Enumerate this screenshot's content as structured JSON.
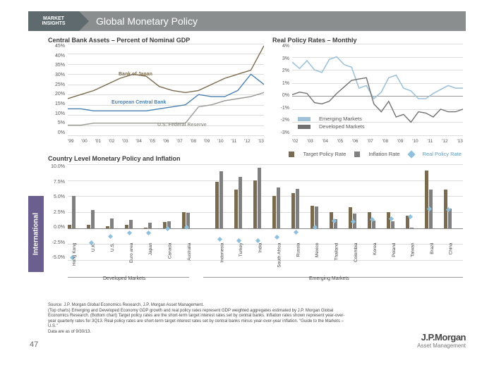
{
  "header": {
    "insights_l1": "MARKET",
    "insights_l2": "INSIGHTS",
    "title": "Global Monetary Policy"
  },
  "sidebar": {
    "label": "International"
  },
  "chart_tl": {
    "type": "line",
    "title": "Central Bank Assets – Percent of Nominal GDP",
    "ylim": [
      0,
      45
    ],
    "ytick_step": 5,
    "xticks": [
      "'99",
      "'00",
      "'01",
      "'02",
      "'03",
      "'04",
      "'05",
      "'06",
      "'07",
      "'08",
      "'09",
      "'10",
      "'11",
      "'12",
      "'13"
    ],
    "series": {
      "boj": {
        "label": "Bank of Japan",
        "color": "#7a6a4f",
        "values": [
          18,
          20,
          22,
          25,
          28,
          30,
          29,
          24,
          22,
          21,
          22,
          25,
          28,
          30,
          32,
          44
        ]
      },
      "ecb": {
        "label": "European Central Bank",
        "color": "#4a7fb0",
        "values": [
          13,
          13,
          12,
          12,
          12,
          12,
          12,
          13,
          14,
          15,
          20,
          19,
          19,
          22,
          30,
          25
        ]
      },
      "fed": {
        "label": "U.S. Federal Reserve",
        "color": "#989793",
        "values": [
          5,
          5,
          6,
          6,
          6,
          6,
          6,
          6,
          6,
          6,
          14,
          15,
          17,
          18,
          19,
          21
        ]
      }
    },
    "background": "#ffffff",
    "grid_color": "#dcdcda",
    "title_fontsize": 9,
    "label_fontsize": 7
  },
  "chart_tr": {
    "type": "line",
    "title": "Real Policy Rates – Monthly",
    "ylim": [
      -3,
      4
    ],
    "yticks": [
      "4%",
      "3%",
      "2%",
      "1%",
      "0%",
      "-1%",
      "-2%",
      "-3%"
    ],
    "xticks": [
      "'02",
      "'03",
      "'04",
      "'05",
      "'06",
      "'07",
      "'08",
      "'09",
      "'10",
      "'11",
      "'12",
      "'13"
    ],
    "series": {
      "em": {
        "label": "Emerging Markets",
        "color": "#9fc2d8",
        "values": [
          2.6,
          2.1,
          2.7,
          2.0,
          1.8,
          2.8,
          3.0,
          2.4,
          2.2,
          0.6,
          0.8,
          -0.2,
          0.3,
          1.4,
          1.6,
          0.6,
          0.4,
          -0.2,
          -0.2,
          0.2,
          0.5,
          0.8,
          0.6,
          0.6
        ]
      },
      "dm": {
        "label": "Developed Markets",
        "color": "#707070",
        "values": [
          0.1,
          0.3,
          0.2,
          -0.5,
          -0.6,
          -0.4,
          0.2,
          0.7,
          1.2,
          1.3,
          1.4,
          -0.6,
          -1.2,
          -0.4,
          -1.6,
          -1.4,
          -2.0,
          -1.2,
          -1.3,
          -1.6,
          -1.0,
          -1.2,
          -1.2,
          -1.0
        ]
      }
    },
    "background": "#ffffff",
    "grid_color": "#dcdcda",
    "title_fontsize": 9,
    "label_fontsize": 7
  },
  "chart_b": {
    "type": "bar",
    "title": "Country Level Monetary Policy and Inflation",
    "ylim": [
      -5,
      10
    ],
    "yticks": [
      "10.0%",
      "7.5%",
      "5.0%",
      "2.5%",
      "0.0%",
      "-2.5%",
      "-5.0%"
    ],
    "legend": {
      "target": "Target Policy Rate",
      "infl": "Inflation Rate",
      "real": "Real Policy Rate"
    },
    "colors": {
      "target": "#7a6a4f",
      "infl": "#808080",
      "real": "#8fc1de"
    },
    "countries": [
      {
        "name": "Hong Kong",
        "target": 0.5,
        "infl": 5.0,
        "real": -4.6
      },
      {
        "name": "U.K.",
        "target": 0.5,
        "infl": 2.8,
        "real": -2.3
      },
      {
        "name": "U.S.",
        "target": 0.3,
        "infl": 1.5,
        "real": -1.3
      },
      {
        "name": "Euro area",
        "target": 0.5,
        "infl": 1.3,
        "real": -0.8
      },
      {
        "name": "Japan",
        "target": 0.1,
        "infl": 0.9,
        "real": -0.8
      },
      {
        "name": "Canada",
        "target": 1.0,
        "infl": 1.1,
        "real": -0.1
      },
      {
        "name": "Australia",
        "target": 2.5,
        "infl": 2.4,
        "real": 0.1
      },
      {
        "name": "Indonesia",
        "target": 7.3,
        "infl": 8.9,
        "real": -1.7
      },
      {
        "name": "Turkey",
        "target": 6.0,
        "infl": 8.0,
        "real": -2.0
      },
      {
        "name": "India",
        "target": 7.5,
        "infl": 9.5,
        "real": -2.0
      },
      {
        "name": "South Africa",
        "target": 5.0,
        "infl": 6.4,
        "real": -1.4
      },
      {
        "name": "Russia",
        "target": 5.5,
        "infl": 6.1,
        "real": -0.6
      },
      {
        "name": "Mexico",
        "target": 3.5,
        "infl": 3.4,
        "real": 0.1
      },
      {
        "name": "Thailand",
        "target": 2.5,
        "infl": 1.4,
        "real": 1.1
      },
      {
        "name": "Colombia",
        "target": 3.3,
        "infl": 2.3,
        "real": 1.0
      },
      {
        "name": "Korea",
        "target": 2.5,
        "infl": 1.2,
        "real": 1.3
      },
      {
        "name": "Poland",
        "target": 2.5,
        "infl": 1.1,
        "real": 1.4
      },
      {
        "name": "Taiwan",
        "target": 1.9,
        "infl": 0.1,
        "real": 1.8
      },
      {
        "name": "Brazil",
        "target": 9.0,
        "infl": 6.0,
        "real": 3.0
      },
      {
        "name": "China",
        "target": 6.0,
        "infl": 3.1,
        "real": 2.9
      }
    ],
    "group_labels": {
      "dev": "Developed Markets",
      "em": "Emerging Markets"
    },
    "background": "#ffffff"
  },
  "footer": {
    "source": "Source: J.P. Morgan Global Economics Research, J.P. Morgan Asset Management.",
    "note": "(Top charts) Emerging and Developed Economy GDP growth and real policy rates represent GDP weighted aggregates estimated by J.P. Morgan Global Economics Research. (Bottom chart) Target policy rates are the short-term target interest rates set by central banks. Inflation rates shown represent year-over-year quarterly rates for 3Q13. Real policy rates are short-term target interest rates set by central banks minus year-over-year inflation. \"Guide to the Markets – U.S.\"",
    "date": "Data are as of 9/30/13."
  },
  "page": "47",
  "logo": {
    "l1": "J.P.Morgan",
    "l2": "Asset Management"
  }
}
